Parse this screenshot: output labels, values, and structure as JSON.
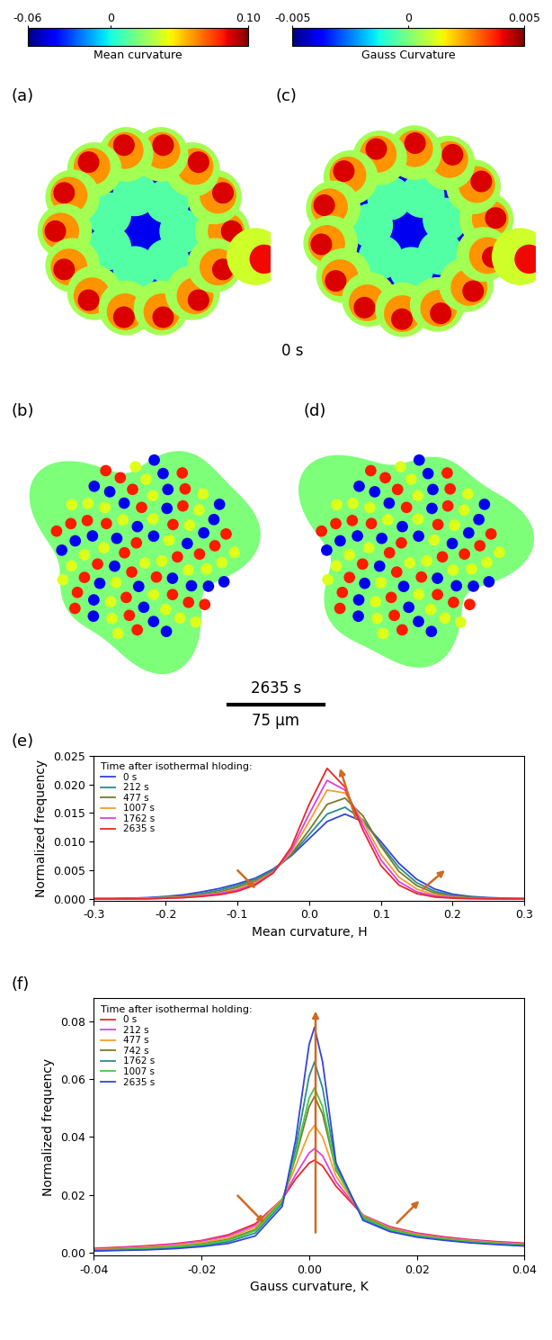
{
  "header": {
    "colorbars": [
      {
        "label": "Mean curvature",
        "range": [
          -0.06,
          0.1
        ],
        "ticks": [
          {
            "value": -0.06,
            "label": "-0.06"
          },
          0,
          {
            "value": 0.1,
            "label": "0.10"
          }
        ]
      },
      {
        "label": "Gauss Curvature",
        "range": [
          -0.005,
          0.005
        ],
        "ticks": [
          -0.005,
          0,
          0.005
        ]
      }
    ],
    "panel_labels": [
      "(a)",
      "(b)",
      "(c)",
      "(d)",
      "(e)",
      "(f)"
    ],
    "times": [
      "0 s",
      "2635 s"
    ],
    "scale_bar": {
      "length": 75,
      "label": "75 μm"
    }
  },
  "chart_data": [
    {
      "type": "line",
      "xlabel": "Mean curvature, H",
      "ylabel": "Normalized frequency",
      "legend": "upper left",
      "legend_title": "Time after isothermal hloding:",
      "xlim": [
        -0.3,
        0.3
      ],
      "xticks": [
        -0.3,
        -0.2,
        -0.1,
        0.0,
        0.1,
        0.2,
        0.3
      ],
      "ylim": [
        -0.0003,
        0.025
      ],
      "yticks": [
        {
          "value": 0,
          "label": "0.000"
        },
        0.005,
        {
          "value": 0.01,
          "label": "0.010"
        },
        0.015,
        {
          "value": 0.02,
          "label": "0.020"
        },
        0.025
      ],
      "x": [
        -0.3,
        -0.275,
        -0.25,
        -0.225,
        -0.2,
        -0.175,
        -0.15,
        -0.125,
        -0.1,
        -0.075,
        -0.05,
        -0.025,
        0,
        0.025,
        0.05,
        0.075,
        0.1,
        0.125,
        0.15,
        0.175,
        0.2,
        0.225,
        0.25,
        0.275,
        0.3
      ],
      "series": [
        {
          "name": "0 s",
          "color": "#3344dd",
          "values": [
            0,
            0,
            0.0001,
            0.0002,
            0.0004,
            0.0007,
            0.0012,
            0.0018,
            0.0026,
            0.0036,
            0.0052,
            0.0075,
            0.0105,
            0.0135,
            0.0148,
            0.0135,
            0.01,
            0.0062,
            0.0034,
            0.0017,
            0.0008,
            0.0004,
            0.0002,
            0.0001,
            0
          ]
        },
        {
          "name": "212 s",
          "color": "#2a8c8c",
          "values": [
            0,
            0,
            0.0001,
            0.0001,
            0.0003,
            0.0005,
            0.0009,
            0.0015,
            0.0023,
            0.0034,
            0.005,
            0.0076,
            0.0112,
            0.0148,
            0.016,
            0.0138,
            0.0095,
            0.0055,
            0.0028,
            0.0013,
            0.0006,
            0.0003,
            0.0001,
            0,
            0
          ]
        },
        {
          "name": "477 s",
          "color": "#7a7a2a",
          "values": [
            0,
            0,
            0,
            0.0001,
            0.0002,
            0.0004,
            0.0007,
            0.0012,
            0.002,
            0.0031,
            0.0048,
            0.0078,
            0.012,
            0.0165,
            0.0176,
            0.0145,
            0.0092,
            0.0048,
            0.0023,
            0.001,
            0.0004,
            0.0002,
            0.0001,
            0,
            0
          ]
        },
        {
          "name": "1007 s",
          "color": "#f0a030",
          "values": [
            0,
            0,
            0,
            0.0001,
            0.0002,
            0.0003,
            0.0006,
            0.001,
            0.0017,
            0.0028,
            0.0047,
            0.0082,
            0.0135,
            0.019,
            0.0185,
            0.0135,
            0.0078,
            0.0038,
            0.0017,
            0.0007,
            0.0003,
            0.0001,
            0,
            0,
            0
          ]
        },
        {
          "name": "1762 s",
          "color": "#e040e0",
          "values": [
            0,
            0,
            0,
            0,
            0.0001,
            0.0002,
            0.0005,
            0.0009,
            0.0015,
            0.0026,
            0.0046,
            0.0085,
            0.0148,
            0.0207,
            0.019,
            0.0128,
            0.0068,
            0.003,
            0.0012,
            0.0005,
            0.0002,
            0.0001,
            0,
            0,
            0
          ]
        },
        {
          "name": "2635 s",
          "color": "#e8282a",
          "values": [
            0,
            0,
            0,
            0,
            0.0001,
            0.0002,
            0.0004,
            0.0007,
            0.0013,
            0.0024,
            0.0045,
            0.009,
            0.0165,
            0.0228,
            0.0195,
            0.012,
            0.0058,
            0.0024,
            0.0009,
            0.0003,
            0.0001,
            0,
            0,
            0,
            0
          ]
        }
      ]
    },
    {
      "type": "line",
      "xlabel": "Gauss curvature, K",
      "ylabel": "Normalized frequency",
      "legend": "upper left",
      "legend_title": "Time after isothermal holding:",
      "xlim": [
        -0.04,
        0.04
      ],
      "xticks": [
        -0.04,
        -0.02,
        {
          "value": 0,
          "label": "0.00"
        },
        0.02,
        0.04
      ],
      "ylim": [
        -0.001,
        0.088
      ],
      "yticks": [
        {
          "value": 0,
          "label": "0.00"
        },
        0.02,
        0.04,
        0.06,
        0.08
      ],
      "x": [
        -0.04,
        -0.035,
        -0.03,
        -0.025,
        -0.02,
        -0.015,
        -0.01,
        -0.005,
        -0.0025,
        0,
        0.001,
        0.0025,
        0.005,
        0.01,
        0.015,
        0.02,
        0.025,
        0.03,
        0.035,
        0.04
      ],
      "series": [
        {
          "name": "0 s",
          "color": "#e8282a",
          "values": [
            0.0015,
            0.0019,
            0.0024,
            0.0031,
            0.0042,
            0.0062,
            0.01,
            0.0185,
            0.0255,
            0.031,
            0.032,
            0.03,
            0.023,
            0.013,
            0.009,
            0.0068,
            0.0055,
            0.0045,
            0.0038,
            0.0033
          ]
        },
        {
          "name": "212 s",
          "color": "#e040e0",
          "values": [
            0.0013,
            0.0017,
            0.0022,
            0.0029,
            0.004,
            0.0058,
            0.0095,
            0.0185,
            0.027,
            0.0345,
            0.036,
            0.0335,
            0.0245,
            0.013,
            0.0088,
            0.0066,
            0.0053,
            0.0043,
            0.0036,
            0.0031
          ]
        },
        {
          "name": "477 s",
          "color": "#f0a030",
          "values": [
            0.0011,
            0.0014,
            0.0019,
            0.0025,
            0.0035,
            0.0052,
            0.0088,
            0.0185,
            0.03,
            0.0415,
            0.044,
            0.04,
            0.0265,
            0.0128,
            0.0085,
            0.0063,
            0.005,
            0.0041,
            0.0034,
            0.0029
          ]
        },
        {
          "name": "742 s",
          "color": "#7a7a2a",
          "values": [
            0.0009,
            0.0012,
            0.0016,
            0.0021,
            0.003,
            0.0046,
            0.008,
            0.018,
            0.033,
            0.0505,
            0.054,
            0.048,
            0.0285,
            0.0125,
            0.0082,
            0.006,
            0.0048,
            0.0039,
            0.0032,
            0.0027
          ]
        },
        {
          "name": "1762 s",
          "color": "#2a8c8c",
          "values": [
            0.0007,
            0.0009,
            0.0012,
            0.0017,
            0.0025,
            0.0038,
            0.0068,
            0.017,
            0.036,
            0.061,
            0.066,
            0.057,
            0.03,
            0.0118,
            0.0077,
            0.0057,
            0.0045,
            0.0036,
            0.003,
            0.0025
          ]
        },
        {
          "name": "1007 s",
          "color": "#44cc44",
          "values": [
            0.0008,
            0.0011,
            0.0015,
            0.002,
            0.0028,
            0.0043,
            0.0076,
            0.0178,
            0.034,
            0.0535,
            0.057,
            0.0505,
            0.029,
            0.0122,
            0.008,
            0.0059,
            0.0047,
            0.0038,
            0.0031,
            0.0026
          ]
        },
        {
          "name": "2635 s",
          "color": "#3344dd",
          "values": [
            0.0006,
            0.0008,
            0.001,
            0.0014,
            0.0021,
            0.0032,
            0.0058,
            0.016,
            0.039,
            0.072,
            0.078,
            0.066,
            0.031,
            0.0112,
            0.0073,
            0.0054,
            0.0043,
            0.0034,
            0.0028,
            0.0023
          ]
        }
      ]
    }
  ]
}
